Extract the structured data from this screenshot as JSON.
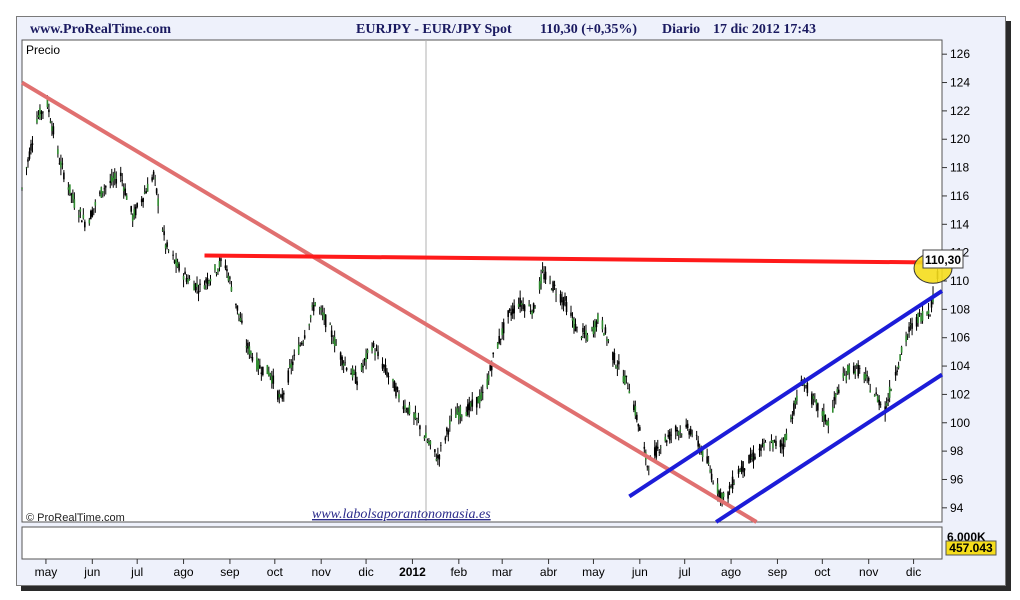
{
  "header": {
    "site": "www.ProRealTime.com",
    "symbol": "EURJPY - EUR/JPY Spot",
    "price_change": "110,30 (+0,35%)",
    "period": "Diario",
    "datetime": "17 dic 2012 17:43"
  },
  "footer": {
    "copyright": "© ProRealTime.com",
    "watermark": "www.labolsaporantonomasia.es"
  },
  "chart_data": {
    "type": "candlestick",
    "panel_label": "Precio",
    "last_price_label": "110,30",
    "volume_labels": [
      "6.000K",
      "457.043"
    ],
    "ylim": [
      93,
      127
    ],
    "y_ticks": [
      94,
      96,
      98,
      100,
      102,
      104,
      106,
      108,
      110,
      112,
      114,
      116,
      118,
      120,
      122,
      124,
      126
    ],
    "x_range": [
      "2011-04-15",
      "2012-12-20"
    ],
    "x_ticks": [
      {
        "label": "may",
        "date": "2011-05-01"
      },
      {
        "label": "jun",
        "date": "2011-06-01"
      },
      {
        "label": "jul",
        "date": "2011-07-01"
      },
      {
        "label": "ago",
        "date": "2011-08-01"
      },
      {
        "label": "sep",
        "date": "2011-09-01"
      },
      {
        "label": "oct",
        "date": "2011-10-01"
      },
      {
        "label": "nov",
        "date": "2011-11-01"
      },
      {
        "label": "dic",
        "date": "2011-12-01"
      },
      {
        "label": "2012",
        "date": "2012-01-01"
      },
      {
        "label": "feb",
        "date": "2012-02-01"
      },
      {
        "label": "mar",
        "date": "2012-03-01"
      },
      {
        "label": "abr",
        "date": "2012-04-01"
      },
      {
        "label": "may",
        "date": "2012-05-01"
      },
      {
        "label": "jun",
        "date": "2012-06-01"
      },
      {
        "label": "jul",
        "date": "2012-07-01"
      },
      {
        "label": "ago",
        "date": "2012-08-01"
      },
      {
        "label": "sep",
        "date": "2012-09-01"
      },
      {
        "label": "oct",
        "date": "2012-10-01"
      },
      {
        "label": "nov",
        "date": "2012-11-01"
      },
      {
        "label": "dic",
        "date": "2012-12-01"
      }
    ],
    "price_path": [
      [
        "2011-04-15",
        116.5
      ],
      [
        "2011-04-25",
        121.5
      ],
      [
        "2011-05-02",
        122.5
      ],
      [
        "2011-05-10",
        118.5
      ],
      [
        "2011-05-20",
        115.5
      ],
      [
        "2011-05-28",
        114.0
      ],
      [
        "2011-06-08",
        116.5
      ],
      [
        "2011-06-20",
        117.5
      ],
      [
        "2011-06-28",
        114.5
      ],
      [
        "2011-07-05",
        116.0
      ],
      [
        "2011-07-12",
        117.5
      ],
      [
        "2011-07-20",
        112.5
      ],
      [
        "2011-07-28",
        111.0
      ],
      [
        "2011-08-05",
        110.0
      ],
      [
        "2011-08-12",
        109.5
      ],
      [
        "2011-08-20",
        110.5
      ],
      [
        "2011-08-28",
        111.5
      ],
      [
        "2011-09-05",
        108.5
      ],
      [
        "2011-09-12",
        105.5
      ],
      [
        "2011-09-20",
        104.0
      ],
      [
        "2011-09-28",
        103.5
      ],
      [
        "2011-10-05",
        101.5
      ],
      [
        "2011-10-12",
        104.0
      ],
      [
        "2011-10-20",
        106.0
      ],
      [
        "2011-10-28",
        108.5
      ],
      [
        "2011-11-05",
        107.0
      ],
      [
        "2011-11-15",
        104.5
      ],
      [
        "2011-11-25",
        103.0
      ],
      [
        "2011-12-05",
        105.5
      ],
      [
        "2011-12-15",
        103.5
      ],
      [
        "2011-12-25",
        101.5
      ],
      [
        "2012-01-05",
        100.0
      ],
      [
        "2012-01-12",
        98.5
      ],
      [
        "2012-01-18",
        97.5
      ],
      [
        "2012-01-28",
        100.5
      ],
      [
        "2012-02-08",
        101.0
      ],
      [
        "2012-02-18",
        102.0
      ],
      [
        "2012-02-25",
        105.0
      ],
      [
        "2012-03-05",
        107.5
      ],
      [
        "2012-03-12",
        108.5
      ],
      [
        "2012-03-22",
        108.0
      ],
      [
        "2012-03-28",
        110.5
      ],
      [
        "2012-04-05",
        109.5
      ],
      [
        "2012-04-12",
        108.5
      ],
      [
        "2012-04-20",
        106.5
      ],
      [
        "2012-04-28",
        106.0
      ],
      [
        "2012-05-05",
        107.5
      ],
      [
        "2012-05-15",
        104.5
      ],
      [
        "2012-05-25",
        102.5
      ],
      [
        "2012-06-01",
        99.5
      ],
      [
        "2012-06-06",
        97.0
      ],
      [
        "2012-06-15",
        98.5
      ],
      [
        "2012-06-25",
        99.5
      ],
      [
        "2012-07-05",
        99.5
      ],
      [
        "2012-07-15",
        97.5
      ],
      [
        "2012-07-22",
        95.5
      ],
      [
        "2012-07-28",
        94.5
      ],
      [
        "2012-08-05",
        96.5
      ],
      [
        "2012-08-15",
        97.5
      ],
      [
        "2012-08-25",
        98.5
      ],
      [
        "2012-09-05",
        98.5
      ],
      [
        "2012-09-12",
        101.0
      ],
      [
        "2012-09-18",
        103.0
      ],
      [
        "2012-09-25",
        101.5
      ],
      [
        "2012-10-05",
        100.0
      ],
      [
        "2012-10-12",
        102.5
      ],
      [
        "2012-10-20",
        104.0
      ],
      [
        "2012-10-28",
        103.5
      ],
      [
        "2012-11-05",
        102.0
      ],
      [
        "2012-11-12",
        101.0
      ],
      [
        "2012-11-20",
        104.0
      ],
      [
        "2012-11-28",
        106.5
      ],
      [
        "2012-12-05",
        107.5
      ],
      [
        "2012-12-12",
        108.0
      ],
      [
        "2012-12-17",
        110.3
      ]
    ],
    "trendlines": [
      {
        "color": "#e07070",
        "from": [
          "2011-04-15",
          124.0
        ],
        "to": [
          "2012-08-18",
          93.0
        ]
      },
      {
        "color": "#ff1a1a",
        "from": [
          "2011-08-15",
          111.8
        ],
        "to": [
          "2012-12-20",
          111.3
        ]
      },
      {
        "color": "#1c1cd8",
        "from": [
          "2012-05-25",
          94.8
        ],
        "to": [
          "2012-12-20",
          109.3
        ]
      },
      {
        "color": "#1c1cd8",
        "from": [
          "2012-07-22",
          93.0
        ],
        "to": [
          "2012-12-20",
          103.4
        ]
      }
    ],
    "highlight": {
      "date": "2012-12-14",
      "price": 110.9,
      "color": "#f5dd1c"
    }
  }
}
